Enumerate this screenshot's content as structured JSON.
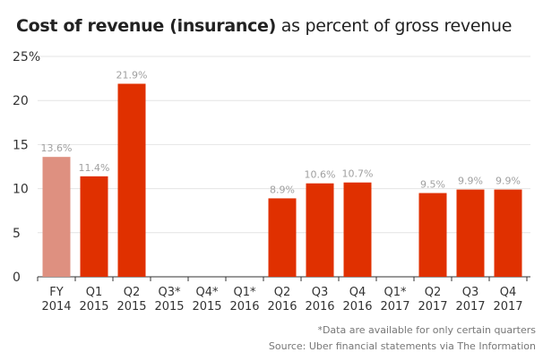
{
  "title_bold": "Cost of revenue (insurance)",
  "title_rest": "as percent of gross revenue",
  "footnote": "*Data are available for only certain quarters",
  "source": "Source: Uber financial statements via The Information",
  "chart_data": {
    "type": "bar",
    "categories": [
      [
        "FY",
        "2014"
      ],
      [
        "Q1",
        "2015"
      ],
      [
        "Q2",
        "2015"
      ],
      [
        "Q3*",
        "2015"
      ],
      [
        "Q4*",
        "2015"
      ],
      [
        "Q1*",
        "2016"
      ],
      [
        "Q2",
        "2016"
      ],
      [
        "Q3",
        "2016"
      ],
      [
        "Q4",
        "2016"
      ],
      [
        "Q1*",
        "2017"
      ],
      [
        "Q2",
        "2017"
      ],
      [
        "Q3",
        "2017"
      ],
      [
        "Q4",
        "2017"
      ]
    ],
    "values": [
      13.6,
      11.4,
      21.9,
      null,
      null,
      null,
      8.9,
      10.6,
      10.7,
      null,
      9.5,
      9.9,
      9.9
    ],
    "data_labels": [
      "13.6%",
      "11.4%",
      "21.9%",
      "",
      "",
      "",
      "8.9%",
      "10.6%",
      "10.7%",
      "",
      "9.5%",
      "9.9%",
      "9.9%"
    ],
    "yticks": [
      "0",
      "5",
      "10",
      "15",
      "20",
      "25%"
    ],
    "ylim": [
      0,
      25
    ],
    "grid": true,
    "colors": {
      "annual": "#de9080",
      "quarterly": "#e03000",
      "label": "#a0a0a0"
    }
  }
}
